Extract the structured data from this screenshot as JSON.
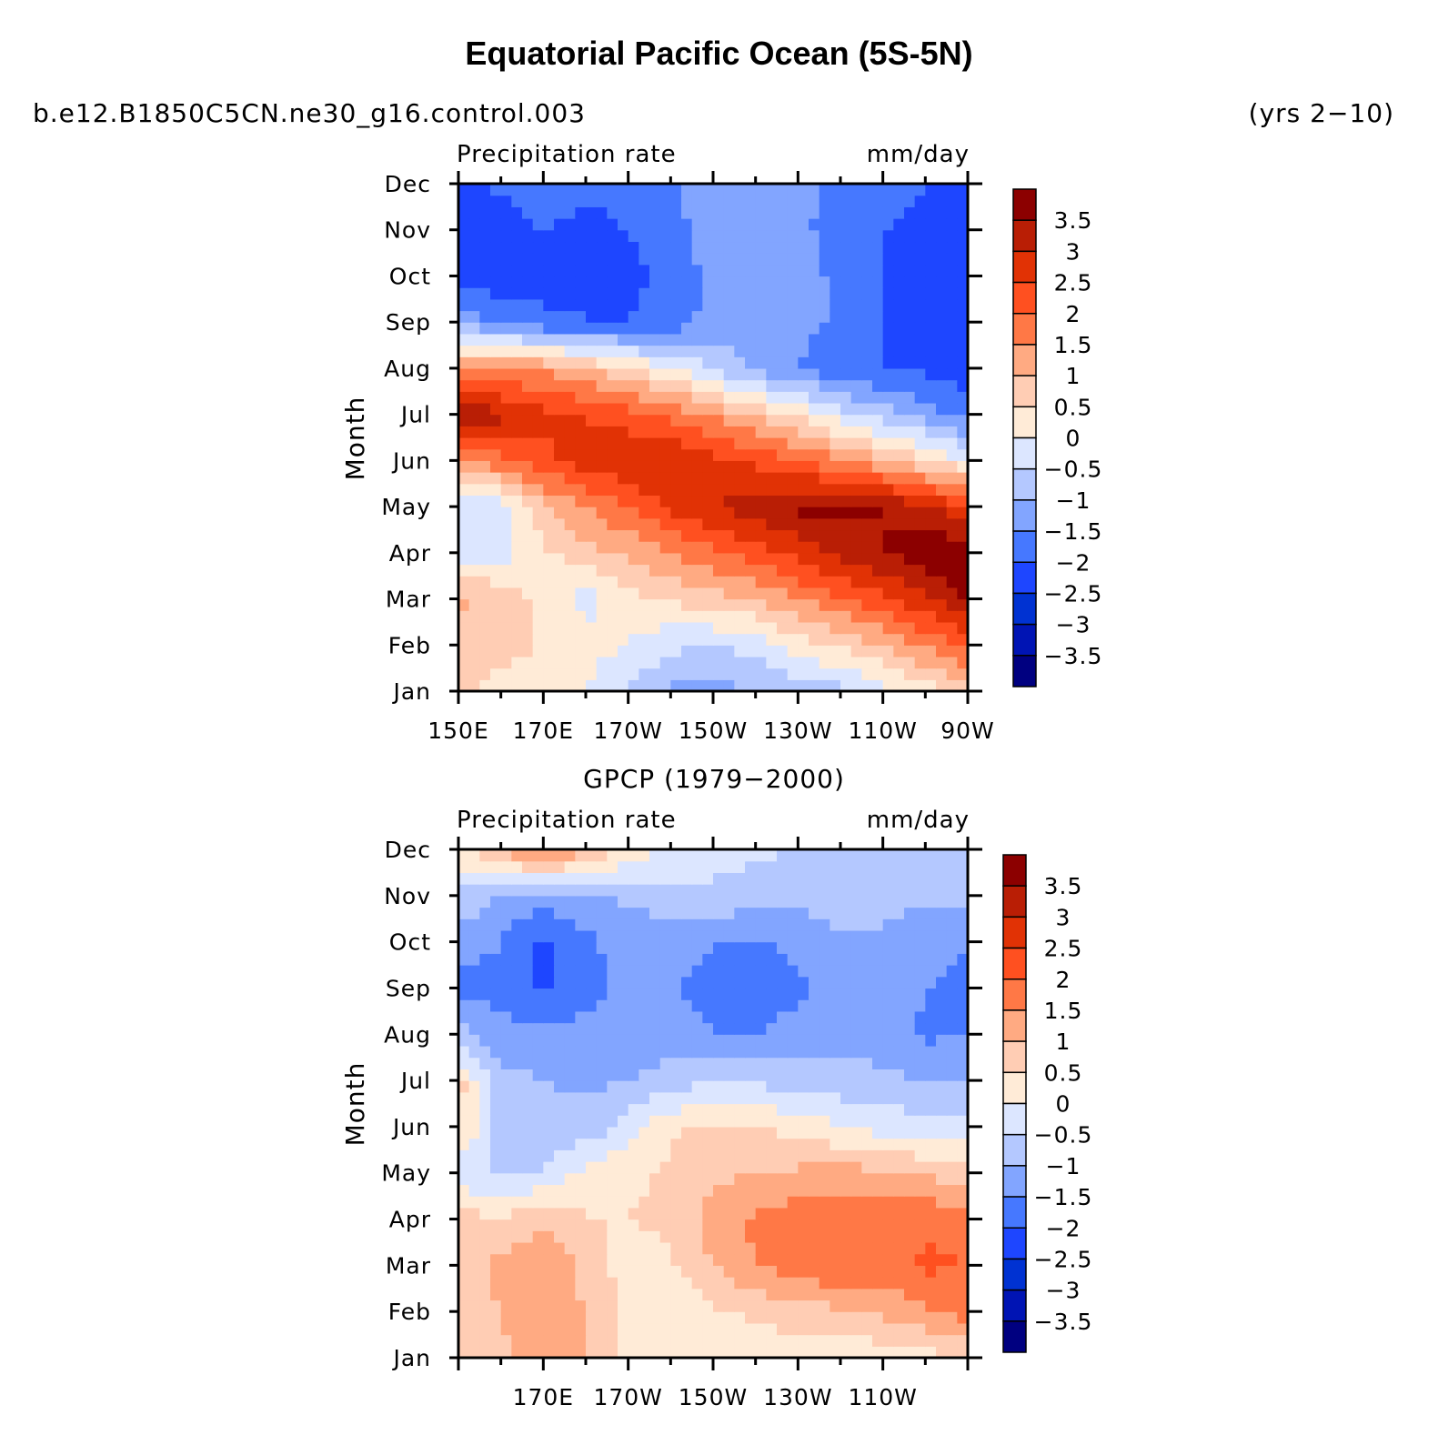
{
  "title": "Equatorial Pacific Ocean (5S-5N)",
  "case_name": "b.e12.B1850C5CN.ne30_g16.control.003",
  "years": "(yrs 2−10)",
  "palette": [
    "#000080",
    "#0014b4",
    "#0032d2",
    "#1e46ff",
    "#4678ff",
    "#82a5ff",
    "#b4c8ff",
    "#dce6ff",
    "#ffebd7",
    "#ffcdb4",
    "#ffaa82",
    "#ff7846",
    "#ff5020",
    "#e13205",
    "#b91e05",
    "#8c0000"
  ],
  "chart_data": [
    {
      "type": "heatmap",
      "panel_title": "",
      "left_string": "Precipitation rate",
      "right_string": "mm/day",
      "ylabel": "Month",
      "x": [
        150,
        160,
        170,
        180,
        190,
        200,
        210,
        220,
        230,
        240,
        250,
        260,
        270
      ],
      "x_ticklabels": [
        "150E",
        "170E",
        "170W",
        "150W",
        "130W",
        "110W",
        "90W"
      ],
      "y_ticklabels": [
        "Jan",
        "Feb",
        "Mar",
        "Apr",
        "May",
        "Jun",
        "Jul",
        "Aug",
        "Sep",
        "Oct",
        "Nov",
        "Dec"
      ],
      "colorbar_labels": [
        "3.5",
        "3",
        "2.5",
        "2",
        "1.5",
        "1",
        "0.5",
        "0",
        "−0.5",
        "−1",
        "−1.5",
        "−2",
        "−2.5",
        "−3",
        "−3.5"
      ],
      "values": [
        [
          0.6,
          0.4,
          0.2,
          0.0,
          -0.6,
          -1.1,
          -1.2,
          -1.0,
          -0.7,
          -0.7,
          -0.2,
          0.2,
          0.7
        ],
        [
          0.6,
          0.6,
          0.5,
          0.2,
          0.0,
          -0.4,
          -0.5,
          -0.3,
          0.2,
          0.6,
          1.0,
          1.6,
          2.2
        ],
        [
          1.1,
          0.9,
          0.3,
          -0.2,
          0.3,
          0.6,
          0.8,
          1.0,
          1.5,
          1.9,
          2.4,
          2.9,
          3.6
        ],
        [
          -0.3,
          -0.2,
          0.4,
          0.8,
          1.1,
          1.5,
          1.9,
          2.3,
          2.7,
          3.1,
          3.5,
          3.8,
          4.0
        ],
        [
          -0.4,
          -0.3,
          0.9,
          1.5,
          2.0,
          2.6,
          3.0,
          3.3,
          3.6,
          3.7,
          3.5,
          3.1,
          2.6
        ],
        [
          1.6,
          1.8,
          2.4,
          2.7,
          3.0,
          3.0,
          2.7,
          2.4,
          2.0,
          1.6,
          1.1,
          0.6,
          0.0
        ],
        [
          3.7,
          3.1,
          2.6,
          2.5,
          2.2,
          1.9,
          1.4,
          0.9,
          0.4,
          -0.3,
          -0.8,
          -1.2,
          -1.8
        ],
        [
          1.4,
          1.6,
          1.4,
          1.0,
          0.5,
          0.1,
          -0.6,
          -1.1,
          -1.5,
          -1.9,
          -2.0,
          -2.1,
          -2.3
        ],
        [
          -1.1,
          -1.6,
          -1.9,
          -2.0,
          -2.0,
          -1.8,
          -1.3,
          -1.3,
          -1.3,
          -1.6,
          -2.0,
          -2.1,
          -2.3
        ],
        [
          -2.2,
          -2.4,
          -2.2,
          -2.0,
          -2.1,
          -1.9,
          -1.3,
          -1.3,
          -1.3,
          -1.6,
          -2.0,
          -2.1,
          -2.4
        ],
        [
          -2.4,
          -2.3,
          -2.0,
          -2.2,
          -2.0,
          -1.7,
          -1.2,
          -1.3,
          -1.4,
          -1.7,
          -2.0,
          -2.1,
          -2.4
        ],
        [
          -2.1,
          -1.9,
          -1.6,
          -1.8,
          -1.8,
          -1.6,
          -1.2,
          -1.3,
          -1.4,
          -1.6,
          -1.9,
          -2.0,
          -2.1
        ]
      ]
    },
    {
      "type": "heatmap",
      "panel_title": "GPCP (1979−2000)",
      "left_string": "Precipitation rate",
      "right_string": "mm/day",
      "ylabel": "Month",
      "x": [
        150,
        160,
        170,
        180,
        190,
        200,
        210,
        220,
        230,
        240,
        250,
        260,
        270
      ],
      "x_ticklabels": [
        "170E",
        "170W",
        "150W",
        "130W",
        "110W"
      ],
      "y_ticklabels": [
        "Jan",
        "Feb",
        "Mar",
        "Apr",
        "May",
        "Jun",
        "Jul",
        "Aug",
        "Sep",
        "Oct",
        "Nov",
        "Dec"
      ],
      "colorbar_labels": [
        "3.5",
        "3",
        "2.5",
        "2",
        "1.5",
        "1",
        "0.5",
        "0",
        "−0.5",
        "−1",
        "−1.5",
        "−2",
        "−2.5",
        "−3",
        "−3.5"
      ],
      "values": [
        [
          0.6,
          0.9,
          1.4,
          1.1,
          0.3,
          0.2,
          0.2,
          0.2,
          0.2,
          0.1,
          0.2,
          0.3,
          0.6
        ],
        [
          0.8,
          1.0,
          1.2,
          1.0,
          0.3,
          0.2,
          0.4,
          0.6,
          0.8,
          0.9,
          1.1,
          1.4,
          1.7
        ],
        [
          0.8,
          1.1,
          1.3,
          0.9,
          0.2,
          0.4,
          1.0,
          1.5,
          1.8,
          2.0,
          1.8,
          2.1,
          2.0
        ],
        [
          0.7,
          0.6,
          1.0,
          0.5,
          0.5,
          0.6,
          1.2,
          1.6,
          1.8,
          1.9,
          1.8,
          1.9,
          1.7
        ],
        [
          -0.3,
          -0.6,
          -0.5,
          0.2,
          0.4,
          0.6,
          0.9,
          1.0,
          1.1,
          1.2,
          1.1,
          0.9,
          0.7
        ],
        [
          0.6,
          -0.8,
          -0.9,
          -0.8,
          -0.3,
          0.4,
          0.6,
          0.5,
          0.3,
          0.0,
          -0.2,
          -0.3,
          -0.3
        ],
        [
          0.7,
          -0.8,
          -1.0,
          -1.1,
          -1.0,
          -0.8,
          -0.5,
          -0.6,
          -0.7,
          -0.8,
          -0.9,
          -1.0,
          -1.1
        ],
        [
          -0.8,
          -1.3,
          -1.4,
          -1.3,
          -1.2,
          -1.3,
          -1.5,
          -1.5,
          -1.3,
          -1.2,
          -1.2,
          -1.6,
          -1.5
        ],
        [
          -1.7,
          -1.7,
          -2.1,
          -1.7,
          -1.4,
          -1.5,
          -1.6,
          -1.7,
          -1.6,
          -1.2,
          -1.1,
          -1.5,
          -1.6
        ],
        [
          -1.2,
          -1.5,
          -2.1,
          -1.6,
          -1.3,
          -1.4,
          -1.5,
          -1.6,
          -1.4,
          -1.1,
          -1.1,
          -1.4,
          -1.5
        ],
        [
          -0.6,
          -1.1,
          -1.2,
          -1.1,
          -0.9,
          -0.7,
          -0.6,
          -0.8,
          -0.8,
          -0.7,
          -0.8,
          -0.9,
          -0.9
        ],
        [
          0.3,
          1.2,
          1.8,
          1.1,
          0.4,
          -0.1,
          -0.3,
          -0.4,
          -0.5,
          -0.5,
          -0.6,
          -0.7,
          -0.8
        ]
      ]
    }
  ]
}
